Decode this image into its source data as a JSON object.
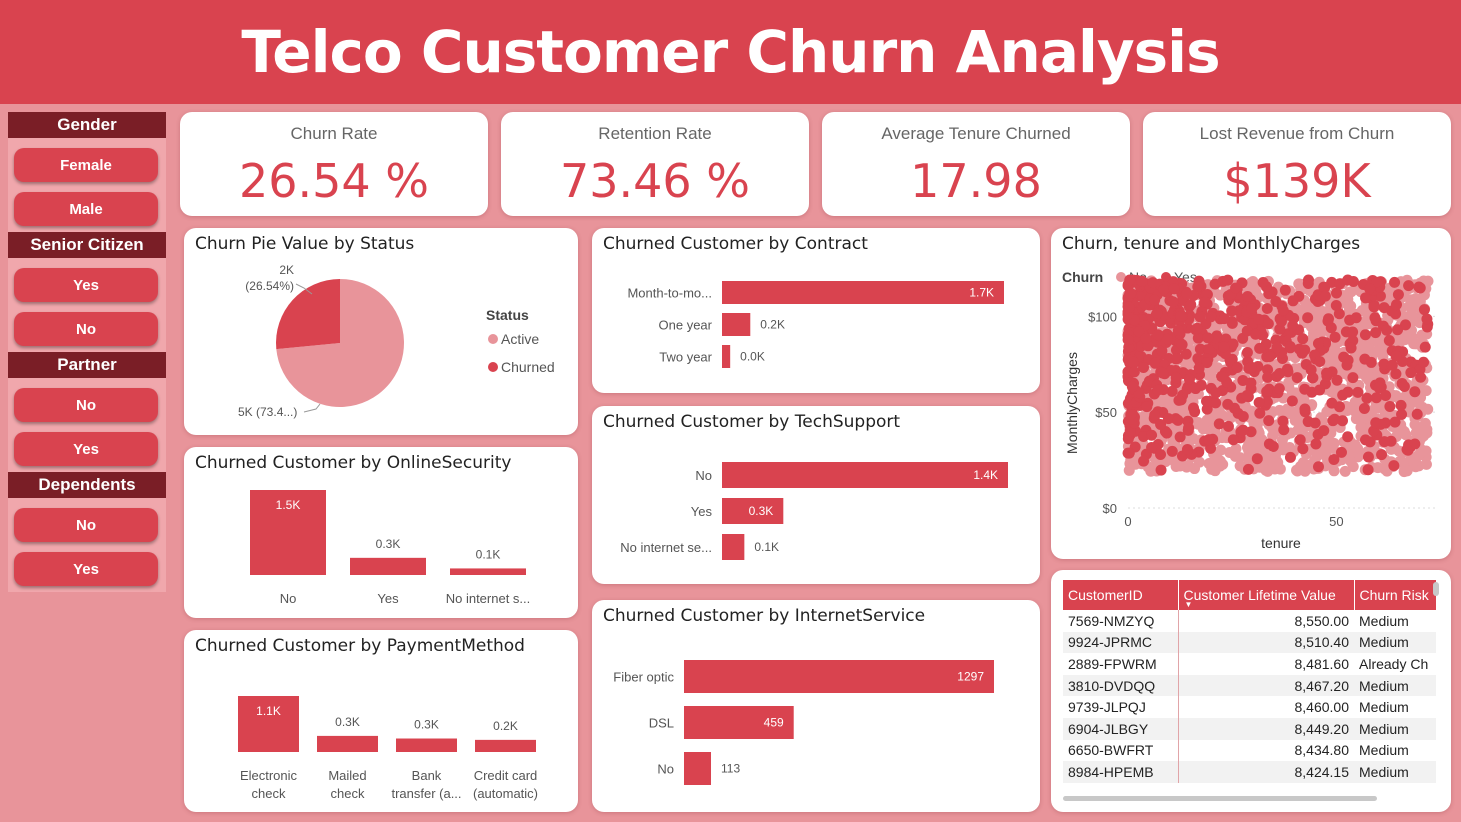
{
  "title": "Telco Customer Churn Analysis",
  "colors": {
    "accent": "#d9434f",
    "light": "#e8949a",
    "dark": "#7a1e26"
  },
  "filters": [
    {
      "heading": "Gender",
      "options": [
        "Female",
        "Male"
      ]
    },
    {
      "heading": "Senior Citizen",
      "options": [
        "Yes",
        "No"
      ]
    },
    {
      "heading": "Partner",
      "options": [
        "No",
        "Yes"
      ]
    },
    {
      "heading": "Dependents",
      "options": [
        "No",
        "Yes"
      ]
    }
  ],
  "kpis": [
    {
      "label": "Churn Rate",
      "value": "26.54 %"
    },
    {
      "label": "Retention Rate",
      "value": "73.46 %"
    },
    {
      "label": "Average Tenure Churned",
      "value": "17.98"
    },
    {
      "label": "Lost Revenue from Churn",
      "value": "$139K"
    }
  ],
  "chart_data": [
    {
      "type": "pie",
      "title": "Churn Pie Value by Status",
      "legend_title": "Status",
      "slices": [
        {
          "name": "Active",
          "value": 73.46,
          "label": "5K (73.4...)",
          "color": "#e8949a"
        },
        {
          "name": "Churned",
          "value": 26.54,
          "label": "2K (26.54%)",
          "label_lines": [
            "2K",
            "(26.54%)"
          ],
          "color": "#d9434f"
        }
      ]
    },
    {
      "type": "bar",
      "orientation": "vertical",
      "title": "Churned Customer by OnlineSecurity",
      "categories": [
        "No",
        "Yes",
        "No internet s..."
      ],
      "values": [
        1461,
        295,
        113
      ],
      "labels": [
        "1.5K",
        "0.3K",
        "0.1K"
      ]
    },
    {
      "type": "bar",
      "orientation": "vertical",
      "title": "Churned Customer by PaymentMethod",
      "categories": [
        [
          "Electronic",
          "check"
        ],
        [
          "Mailed",
          "check"
        ],
        [
          "Bank",
          "transfer (a..."
        ],
        [
          "Credit card",
          "(automatic)"
        ]
      ],
      "values": [
        1071,
        308,
        258,
        232
      ],
      "labels": [
        "1.1K",
        "0.3K",
        "0.3K",
        "0.2K"
      ]
    },
    {
      "type": "bar",
      "orientation": "horizontal",
      "title": "Churned Customer by Contract",
      "categories": [
        "Month-to-mo...",
        "One year",
        "Two year"
      ],
      "values": [
        1655,
        166,
        48
      ],
      "labels": [
        "1.7K",
        "0.2K",
        "0.0K"
      ]
    },
    {
      "type": "bar",
      "orientation": "horizontal",
      "title": "Churned Customer by TechSupport",
      "categories": [
        "No",
        "Yes",
        "No internet se..."
      ],
      "values": [
        1446,
        310,
        113
      ],
      "labels": [
        "1.4K",
        "0.3K",
        "0.1K"
      ]
    },
    {
      "type": "bar",
      "orientation": "horizontal",
      "title": "Churned Customer by InternetService",
      "categories": [
        "Fiber optic",
        "DSL",
        "No"
      ],
      "values": [
        1297,
        459,
        113
      ],
      "labels": [
        "1297",
        "459",
        "113"
      ]
    },
    {
      "type": "scatter",
      "title": "Churn, tenure and MonthlyCharges",
      "legend_title": "Churn",
      "series": [
        {
          "name": "No",
          "color": "#e8949a"
        },
        {
          "name": "Yes",
          "color": "#d9434f"
        }
      ],
      "xlabel": "tenure",
      "ylabel": "MonthlyCharges",
      "xlim": [
        0,
        72
      ],
      "ylim": [
        0,
        120
      ],
      "xticks": [
        "0",
        "50"
      ],
      "yticks": [
        "$0",
        "$50",
        "$100"
      ]
    }
  ],
  "table": {
    "columns": [
      "CustomerID",
      "Customer Lifetime Value",
      "Churn Risk"
    ],
    "rows": [
      [
        "7569-NMZYQ",
        "8,550.00",
        "Medium"
      ],
      [
        "9924-JPRMC",
        "8,510.40",
        "Medium"
      ],
      [
        "2889-FPWRM",
        "8,481.60",
        "Already Ch"
      ],
      [
        "3810-DVDQQ",
        "8,467.20",
        "Medium"
      ],
      [
        "9739-JLPQJ",
        "8,460.00",
        "Medium"
      ],
      [
        "6904-JLBGY",
        "8,449.20",
        "Medium"
      ],
      [
        "6650-BWFRT",
        "8,434.80",
        "Medium"
      ],
      [
        "8984-HPEMB",
        "8,424.15",
        "Medium"
      ]
    ]
  }
}
